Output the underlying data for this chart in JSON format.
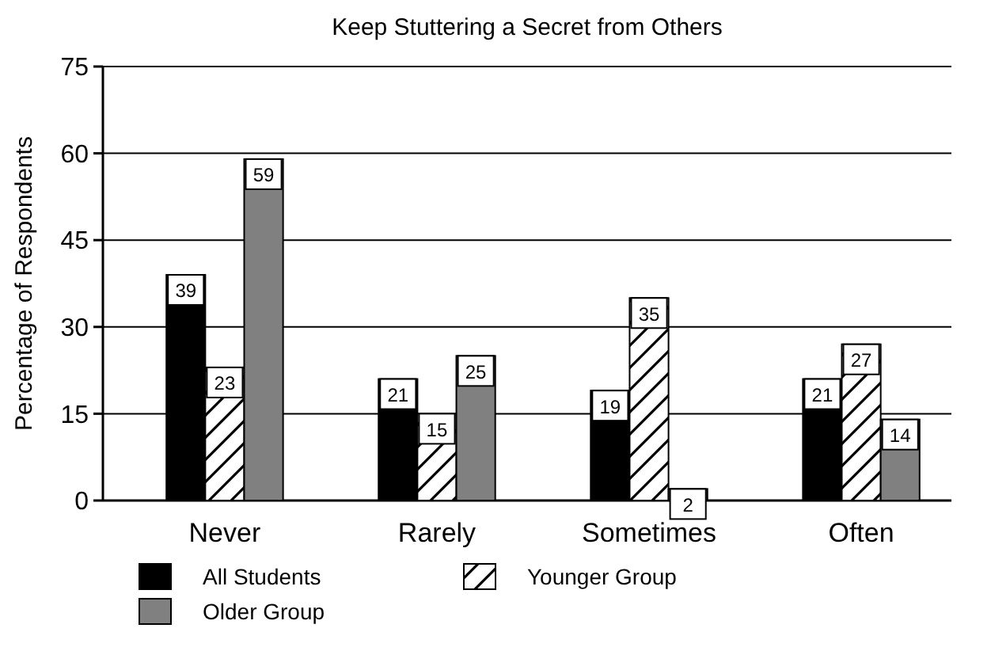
{
  "chart_data": {
    "type": "bar",
    "title": "Keep Stuttering a Secret from Others",
    "ylabel": "Percentage of Respondents",
    "categories": [
      "Never",
      "Rarely",
      "Sometimes",
      "Often"
    ],
    "series": [
      {
        "name": "All Students",
        "color": "#000000",
        "values": [
          39,
          21,
          19,
          21
        ]
      },
      {
        "name": "Younger Group",
        "color": "#ffffff",
        "values": [
          23,
          15,
          35,
          27
        ]
      },
      {
        "name": "Older Group",
        "color": "#808080",
        "values": [
          59,
          25,
          2,
          14
        ]
      }
    ],
    "ylim": [
      0,
      75
    ],
    "yticks": [
      0,
      15,
      30,
      45,
      60,
      75
    ],
    "grid": "y",
    "legend": "bottom",
    "data_labels": true
  }
}
